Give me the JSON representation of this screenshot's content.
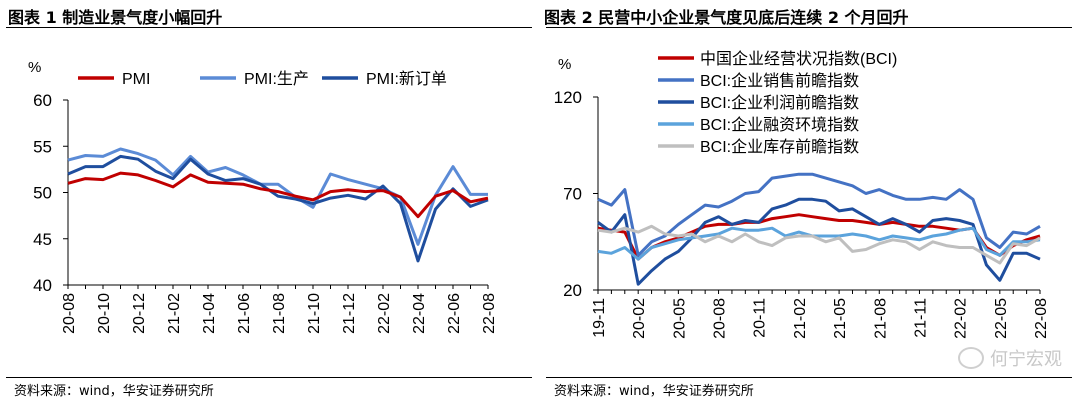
{
  "page": {
    "left_title": "图表 1  制造业景气度小幅回升",
    "right_title": "图表 2  民营中小企业景气度见底后连续 2 个月回升",
    "left_source": "资料来源：wind，华安证券研究所",
    "right_source": "资料来源：wind，华安证券研究所",
    "watermark": "何宁宏观"
  },
  "chart_data": [
    {
      "type": "line",
      "unit_label": "%",
      "x": [
        "20-08",
        "20-09",
        "20-10",
        "20-11",
        "20-12",
        "21-01",
        "21-02",
        "21-03",
        "21-04",
        "21-05",
        "21-06",
        "21-07",
        "21-08",
        "21-09",
        "21-10",
        "21-11",
        "21-12",
        "22-01",
        "22-02",
        "22-03",
        "22-04",
        "22-05",
        "22-06",
        "22-07",
        "22-08"
      ],
      "xticks": [
        "20-08",
        "20-10",
        "20-12",
        "21-02",
        "21-04",
        "21-06",
        "21-08",
        "21-10",
        "21-12",
        "22-02",
        "22-04",
        "22-06",
        "22-08"
      ],
      "ylim": [
        40,
        60
      ],
      "yticks": [
        40,
        45,
        50,
        55,
        60
      ],
      "legend_position": "top",
      "series": [
        {
          "name": "PMI:生产",
          "color": "#5b8bd6",
          "values": [
            53.5,
            54.0,
            53.9,
            54.7,
            54.2,
            53.5,
            51.9,
            53.9,
            52.2,
            52.7,
            51.9,
            50.9,
            50.9,
            49.5,
            48.4,
            52.0,
            51.4,
            50.9,
            50.4,
            49.5,
            44.4,
            49.7,
            52.8,
            49.8,
            49.8
          ]
        },
        {
          "name": "PMI:新订单",
          "color": "#1f4e9e",
          "values": [
            52.0,
            52.8,
            52.8,
            53.9,
            53.6,
            52.3,
            51.5,
            53.6,
            52.0,
            51.3,
            51.5,
            50.9,
            49.6,
            49.3,
            48.8,
            49.4,
            49.7,
            49.3,
            50.7,
            48.8,
            42.6,
            48.2,
            50.4,
            48.5,
            49.2
          ]
        },
        {
          "name": "PMI",
          "color": "#c00000",
          "values": [
            51.0,
            51.5,
            51.4,
            52.1,
            51.9,
            51.3,
            50.6,
            51.9,
            51.1,
            51.0,
            50.9,
            50.4,
            50.1,
            49.6,
            49.2,
            50.1,
            50.3,
            50.1,
            50.2,
            49.5,
            47.4,
            49.6,
            50.2,
            49.0,
            49.4
          ]
        }
      ]
    },
    {
      "type": "line",
      "unit_label": "%",
      "x": [
        "19-11",
        "19-12",
        "20-01",
        "20-02",
        "20-03",
        "20-04",
        "20-05",
        "20-06",
        "20-07",
        "20-08",
        "20-09",
        "20-10",
        "20-11",
        "20-12",
        "21-01",
        "21-02",
        "21-03",
        "21-04",
        "21-05",
        "21-06",
        "21-07",
        "21-08",
        "21-09",
        "21-10",
        "21-11",
        "21-12",
        "22-01",
        "22-02",
        "22-03",
        "22-04",
        "22-05",
        "22-06",
        "22-07",
        "22-08"
      ],
      "xticks": [
        "19-11",
        "20-02",
        "20-05",
        "20-08",
        "20-11",
        "21-02",
        "21-05",
        "21-08",
        "21-11",
        "22-02",
        "22-05",
        "22-08"
      ],
      "ylim": [
        20,
        120
      ],
      "yticks": [
        20,
        70,
        120
      ],
      "legend_position": "top",
      "series": [
        {
          "name": "中国企业经营状况指数(BCI)",
          "color": "#c00000",
          "values": [
            52,
            51,
            50,
            36,
            42,
            45,
            47,
            50,
            53,
            54,
            54,
            55,
            55,
            57,
            58,
            59,
            58,
            57,
            56,
            56,
            55,
            54,
            55,
            54,
            53,
            53,
            52,
            51,
            52,
            42,
            38,
            43,
            46,
            48
          ]
        },
        {
          "name": "BCI:企业销售前瞻指数",
          "color": "#4472c4",
          "values": [
            67,
            64,
            72,
            38,
            45,
            48,
            54,
            59,
            64,
            63,
            66,
            70,
            71,
            78,
            79,
            80,
            80,
            78,
            76,
            74,
            70,
            72,
            69,
            67,
            67,
            68,
            67,
            72,
            67,
            47,
            42,
            50,
            49,
            53
          ]
        },
        {
          "name": "BCI:企业利润前瞻指数",
          "color": "#1f4e9e",
          "values": [
            55,
            50,
            59,
            23,
            30,
            36,
            40,
            47,
            55,
            58,
            54,
            56,
            55,
            62,
            64,
            67,
            67,
            66,
            61,
            62,
            58,
            54,
            57,
            54,
            50,
            56,
            57,
            56,
            54,
            33,
            25,
            39,
            39,
            36
          ]
        },
        {
          "name": "BCI:企业融资环境指数",
          "color": "#5ba3dc",
          "values": [
            40,
            39,
            42,
            36,
            42,
            44,
            46,
            47,
            48,
            49,
            52,
            51,
            51,
            52,
            48,
            50,
            48,
            48,
            48,
            49,
            48,
            46,
            48,
            47,
            46,
            48,
            49,
            51,
            52,
            41,
            38,
            45,
            45,
            46
          ]
        },
        {
          "name": "BCI:企业库存前瞻指数",
          "color": "#bfbfbf",
          "values": [
            51,
            50,
            52,
            50,
            53,
            49,
            48,
            49,
            45,
            48,
            45,
            49,
            45,
            43,
            47,
            48,
            48,
            45,
            47,
            40,
            41,
            44,
            46,
            45,
            41,
            45,
            43,
            42,
            42,
            38,
            34,
            44,
            43,
            47
          ]
        }
      ]
    }
  ]
}
